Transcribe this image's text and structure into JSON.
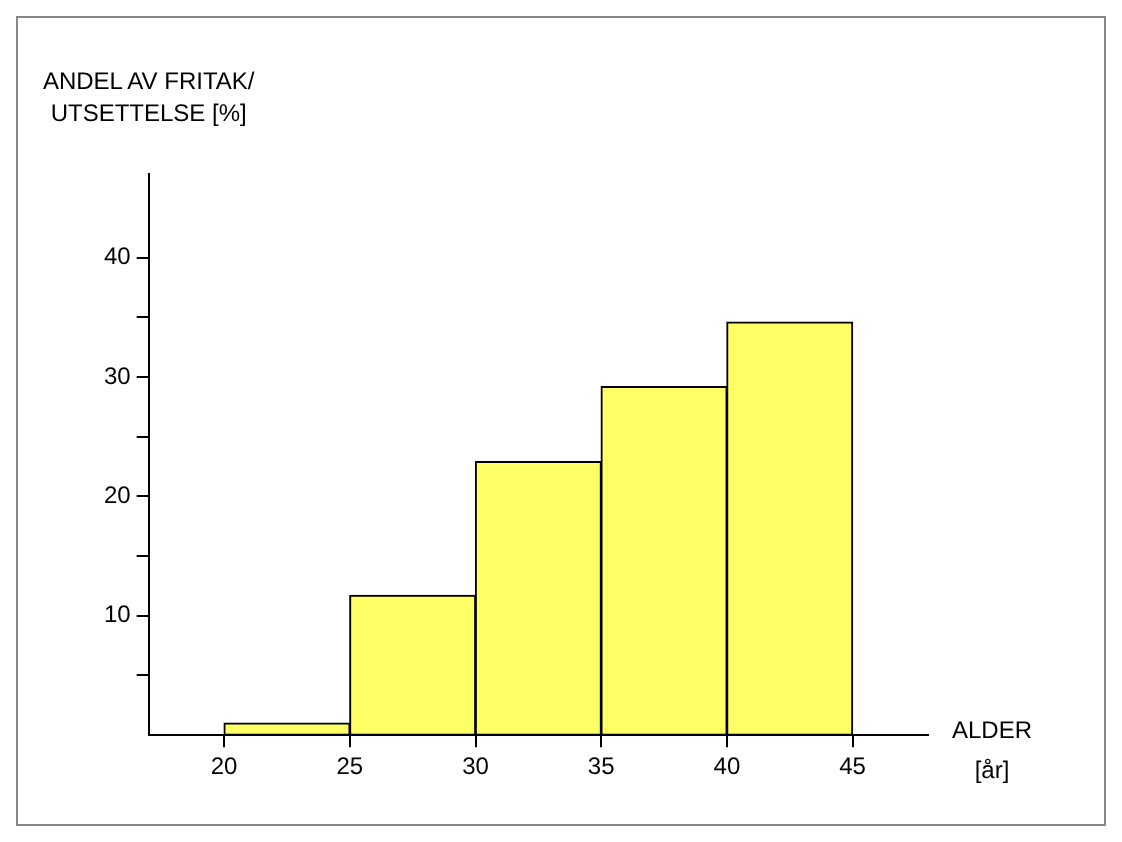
{
  "chart_data": {
    "type": "histogram",
    "xlabel": "ALDER\n[år]",
    "ylabel": "ANDEL AV FRITAK/\nUTSETTELSE [%]",
    "bins": [
      20,
      25,
      30,
      35,
      40,
      45
    ],
    "values": [
      1,
      11.7,
      22.9,
      29.2,
      34.6
    ],
    "color": "#ffff66",
    "xlim": [
      17,
      48
    ],
    "xticks": [
      20,
      25,
      30,
      35,
      40,
      45
    ],
    "ylim": [
      0,
      47
    ],
    "yticks": [
      {
        "value": 5,
        "label": null
      },
      10,
      {
        "value": 15,
        "label": null
      },
      20,
      {
        "value": 25,
        "label": null
      },
      30,
      {
        "value": 35,
        "label": null
      },
      40
    ],
    "grid": false,
    "legend": false
  }
}
